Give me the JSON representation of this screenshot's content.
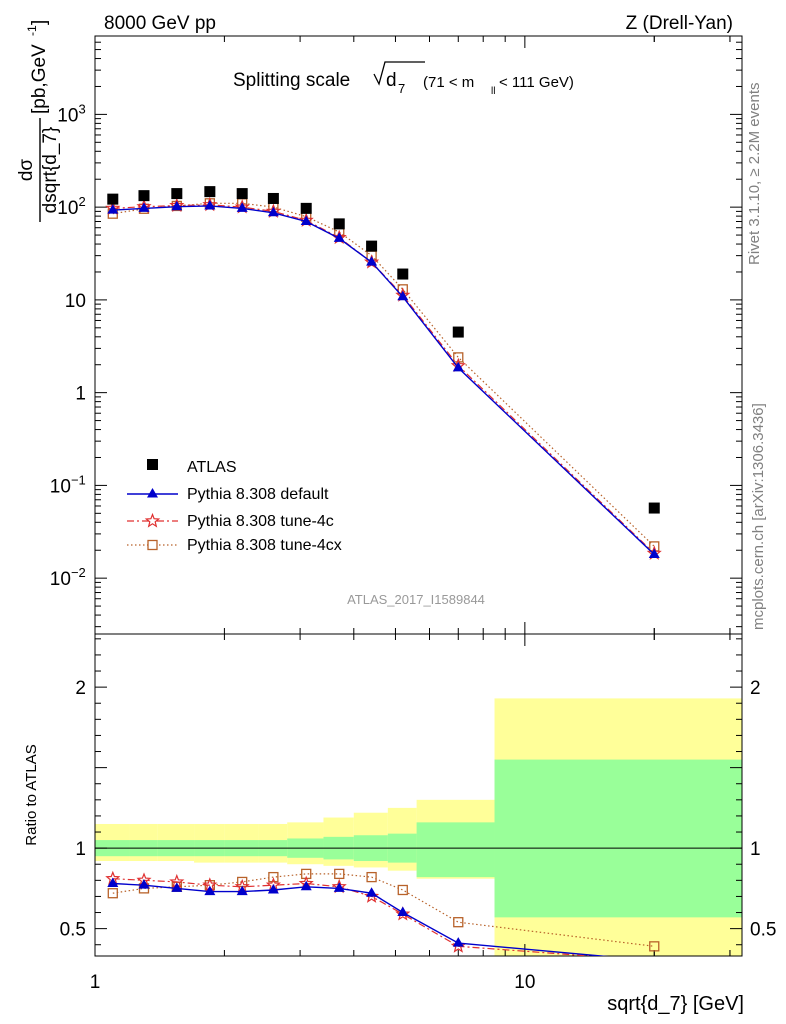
{
  "header": {
    "left": "8000 GeV pp",
    "right": "Z (Drell-Yan)"
  },
  "title": {
    "main": "Splitting scale",
    "var": "d",
    "var_sub": "7",
    "range_a": "(71 < m",
    "range_sub": "ll",
    "range_b": " < 111 GeV)"
  },
  "side": {
    "rivet": "Rivet 3.1.10, ≥ 2.2M events",
    "mcplots": "mcplots.cern.ch [arXiv:1306.3436]"
  },
  "analysis_id": "ATLAS_2017_I1589844",
  "ylabel_main": {
    "num": "dσ",
    "den": "dsqrt{d_7}",
    "unit": "[pb,GeV",
    "unit_sup": "-1",
    "unit_end": "]"
  },
  "ylabel_ratio": "Ratio to ATLAS",
  "xlabel": "sqrt{d_7} [GeV]",
  "legend": {
    "atlas": "ATLAS",
    "default": "Pythia 8.308 default",
    "tune4c": "Pythia 8.308 tune-4c",
    "tune4cx": "Pythia 8.308 tune-4cx"
  },
  "colors": {
    "atlas": "#000000",
    "default": "#0000cc",
    "tune4c": "#e03030",
    "tune4cx": "#b8622a",
    "band_inner": "#99ff99",
    "band_outer": "#ffff99"
  },
  "chart_data": {
    "type": "scatter",
    "x_scale": "log",
    "xlim": [
      1,
      32
    ],
    "x_ticks": [
      {
        "value": 1,
        "label": "1"
      },
      {
        "value": 10,
        "label": "10"
      }
    ],
    "main": {
      "y_scale": "log",
      "ylim": [
        0.0025,
        7000
      ],
      "y_ticks": [
        {
          "value": 0.01,
          "base": "10",
          "exp": "−2"
        },
        {
          "value": 0.1,
          "base": "10",
          "exp": "−1"
        },
        {
          "value": 1,
          "base": "1",
          "exp": ""
        },
        {
          "value": 10,
          "base": "10",
          "exp": ""
        },
        {
          "value": 100,
          "base": "10",
          "exp": "2"
        },
        {
          "value": 1000,
          "base": "10",
          "exp": "3"
        }
      ],
      "bin_edges": [
        1.0,
        1.2,
        1.4,
        1.7,
        2.0,
        2.4,
        2.8,
        3.4,
        4.0,
        4.8,
        5.6,
        8.5,
        32.0
      ],
      "x": [
        1.1,
        1.3,
        1.55,
        1.85,
        2.2,
        2.6,
        3.1,
        3.7,
        4.4,
        5.2,
        7.0,
        20.0
      ],
      "series": [
        {
          "name": "ATLAS",
          "key": "atlas",
          "marker": "square",
          "line": "none",
          "values": [
            122,
            133,
            140,
            147,
            140,
            124,
            97,
            66,
            38,
            19,
            4.5,
            0.057
          ]
        },
        {
          "name": "Pythia 8.308 default",
          "key": "default",
          "marker": "triangle",
          "line": "solid",
          "values": [
            93,
            97,
            101,
            103,
            97,
            87,
            70,
            46,
            25.5,
            10.8,
            1.85,
            0.018
          ]
        },
        {
          "name": "Pythia 8.308 tune-4c",
          "key": "tune4c",
          "marker": "star",
          "line": "dashdot",
          "values": [
            97,
            101,
            104,
            106,
            100,
            90,
            72,
            47,
            25.5,
            11.2,
            1.95,
            0.0185
          ]
        },
        {
          "name": "Pythia 8.308 tune-4cx",
          "key": "tune4cx",
          "marker": "opensquare",
          "line": "dotted",
          "values": [
            85,
            96,
            103,
            110,
            110,
            100,
            79,
            54,
            30,
            13,
            2.4,
            0.022
          ]
        }
      ]
    },
    "ratio": {
      "ylim": [
        0.33,
        2.33
      ],
      "y_ticks": [
        {
          "value": 0.5,
          "label": "0.5"
        },
        {
          "value": 1,
          "label": "1"
        },
        {
          "value": 2,
          "label": "2"
        }
      ],
      "band_edges": [
        1.0,
        1.2,
        1.4,
        1.7,
        2.0,
        2.4,
        2.8,
        3.4,
        4.0,
        4.8,
        5.6,
        8.5,
        32.0
      ],
      "band_inner": [
        [
          0.95,
          1.05
        ],
        [
          0.95,
          1.05
        ],
        [
          0.95,
          1.05
        ],
        [
          0.95,
          1.05
        ],
        [
          0.95,
          1.05
        ],
        [
          0.95,
          1.05
        ],
        [
          0.94,
          1.06
        ],
        [
          0.93,
          1.07
        ],
        [
          0.92,
          1.08
        ],
        [
          0.91,
          1.09
        ],
        [
          0.82,
          1.16
        ],
        [
          0.57,
          1.55
        ]
      ],
      "band_outer": [
        [
          0.92,
          1.15
        ],
        [
          0.92,
          1.15
        ],
        [
          0.92,
          1.15
        ],
        [
          0.91,
          1.15
        ],
        [
          0.91,
          1.15
        ],
        [
          0.91,
          1.15
        ],
        [
          0.9,
          1.16
        ],
        [
          0.89,
          1.19
        ],
        [
          0.88,
          1.22
        ],
        [
          0.86,
          1.25
        ],
        [
          0.81,
          1.3
        ],
        [
          0.33,
          1.93
        ]
      ],
      "x": [
        1.1,
        1.3,
        1.55,
        1.85,
        2.2,
        2.6,
        3.1,
        3.7,
        4.4,
        5.2,
        7.0,
        20.0
      ],
      "series": [
        {
          "name": "Pythia 8.308 default",
          "key": "default",
          "values": [
            0.78,
            0.77,
            0.75,
            0.73,
            0.73,
            0.74,
            0.76,
            0.75,
            0.72,
            0.6,
            0.41,
            0.3
          ]
        },
        {
          "name": "Pythia 8.308 tune-4c",
          "key": "tune4c",
          "values": [
            0.81,
            0.8,
            0.79,
            0.77,
            0.76,
            0.77,
            0.78,
            0.76,
            0.7,
            0.59,
            0.39,
            0.3
          ]
        },
        {
          "name": "Pythia 8.308 tune-4cx",
          "key": "tune4cx",
          "values": [
            0.72,
            0.75,
            0.76,
            0.77,
            0.79,
            0.82,
            0.84,
            0.84,
            0.82,
            0.74,
            0.54,
            0.39
          ]
        }
      ]
    }
  }
}
